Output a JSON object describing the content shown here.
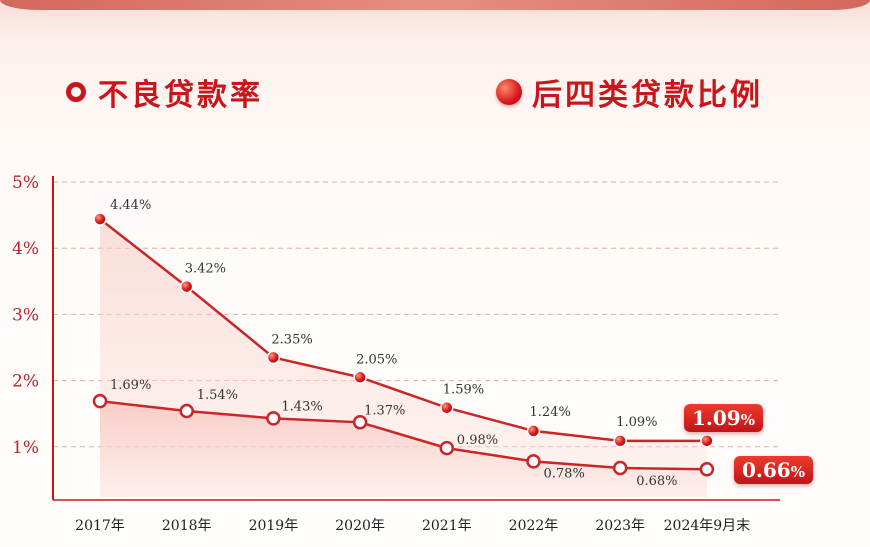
{
  "legend": {
    "npl_label": "不良贷款率",
    "special_mention_label": "后四类贷款比例"
  },
  "colors": {
    "primary_red": "#c8161d",
    "line_red": "#c9262a",
    "fill_pink": "#f6c6c0",
    "grid": "#e3a9a6"
  },
  "callouts": {
    "special_mention_value": "1.09",
    "npl_value": "0.66",
    "percent_sign": "%"
  },
  "chart_data": {
    "type": "area",
    "categories": [
      "2017年",
      "2018年",
      "2019年",
      "2020年",
      "2021年",
      "2022年",
      "2023年",
      "2024年9月末"
    ],
    "ylim": [
      0,
      5
    ],
    "yticks": [
      "1%",
      "2%",
      "3%",
      "4%",
      "5%"
    ],
    "grid": true,
    "series": [
      {
        "name": "后四类贷款比例",
        "marker": "filled-dot",
        "values": [
          4.44,
          3.42,
          2.35,
          2.05,
          1.59,
          1.24,
          1.09,
          1.09
        ],
        "labels": [
          "4.44%",
          "3.42%",
          "2.35%",
          "2.05%",
          "1.59%",
          "1.24%",
          "1.09%",
          "1.09%"
        ]
      },
      {
        "name": "不良贷款率",
        "marker": "hollow-ring",
        "values": [
          1.69,
          1.54,
          1.43,
          1.37,
          0.98,
          0.78,
          0.68,
          0.66
        ],
        "labels": [
          "1.69%",
          "1.54%",
          "1.43%",
          "1.37%",
          "0.98%",
          "0.78%",
          "0.68%",
          "0.66%"
        ]
      }
    ]
  }
}
